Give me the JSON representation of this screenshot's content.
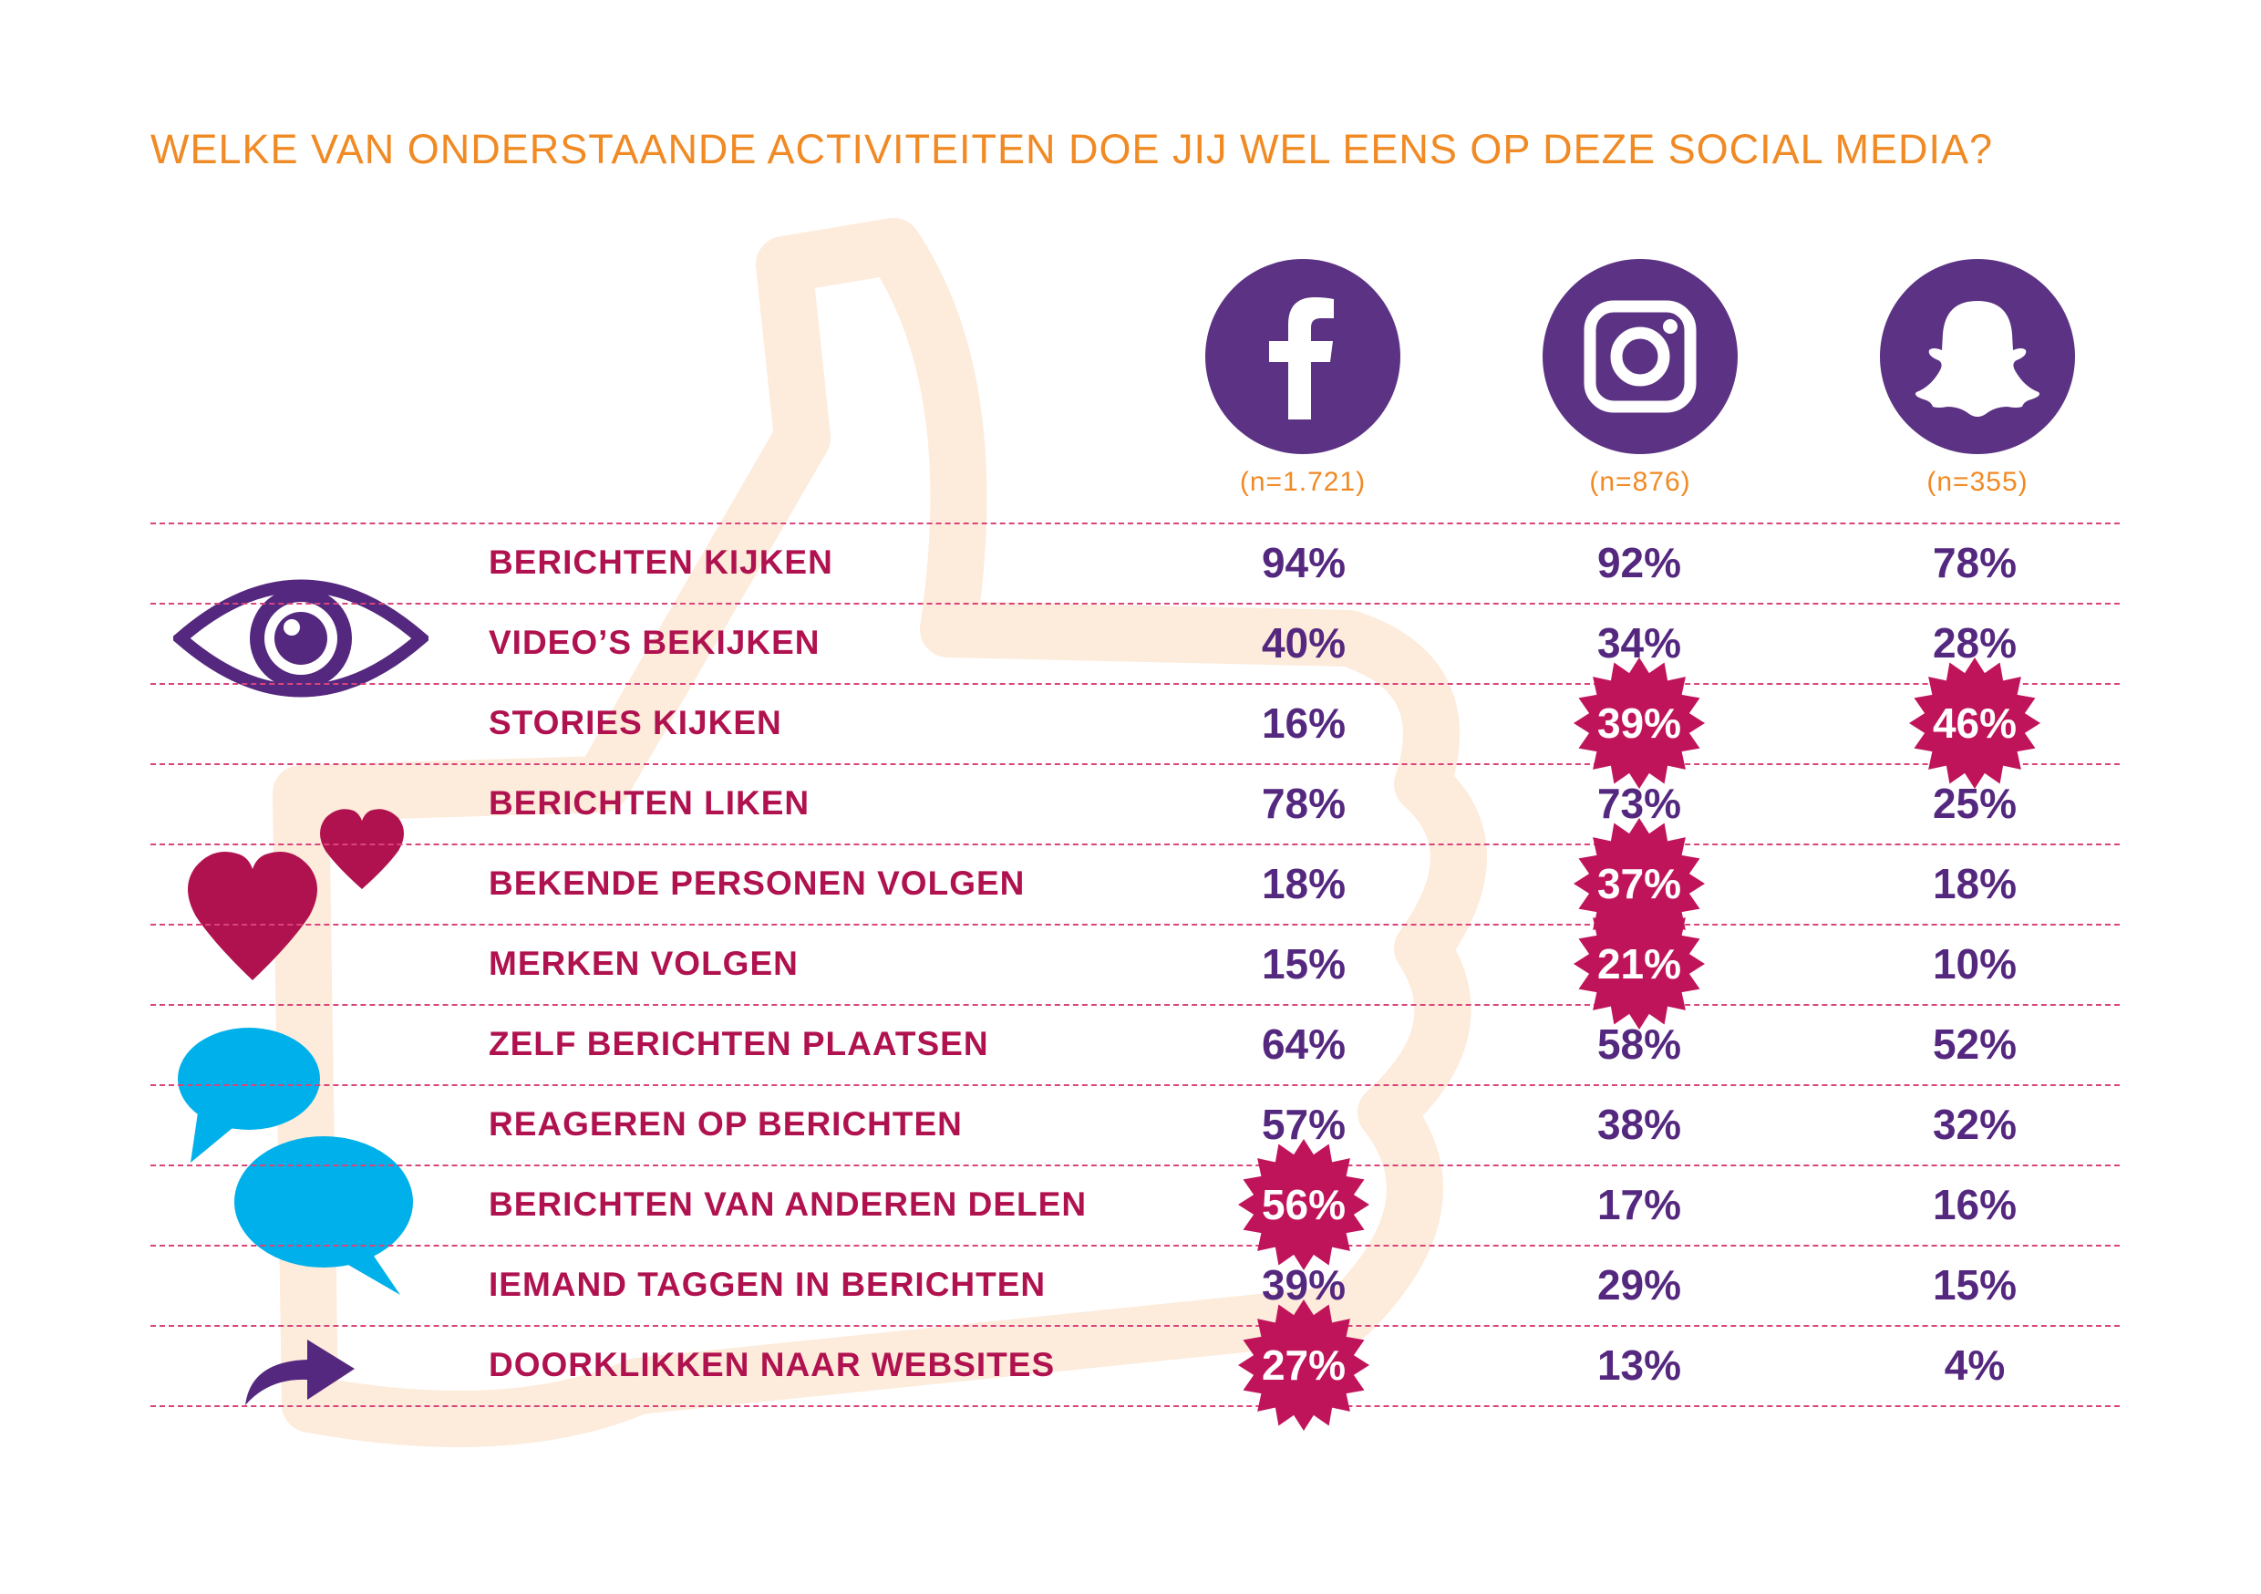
{
  "title": "WELKE VAN ONDERSTAANDE ACTIVITEITEN DOE JIJ WEL EENS OP DEZE SOCIAL MEDIA?",
  "colors": {
    "title": "#F08A24",
    "label": "#B0124F",
    "value": "#55287F",
    "highlight": "#C0145A",
    "logo": "#5C3384",
    "bubble": "#00B0EA",
    "heart": "#B0124F",
    "watermark": "#FDEBDB"
  },
  "platforms": [
    {
      "name": "Facebook",
      "icon": "facebook-icon",
      "n": "(n=1.721)"
    },
    {
      "name": "Instagram",
      "icon": "instagram-icon",
      "n": "(n=876)"
    },
    {
      "name": "Snapchat",
      "icon": "snapchat-icon",
      "n": "(n=355)"
    }
  ],
  "group_icons": [
    "eye-icon",
    "hearts-icon",
    "speech-bubbles-icon",
    "arrow-icon"
  ],
  "chart_data": {
    "type": "table",
    "title": "WELKE VAN ONDERSTAANDE ACTIVITEITEN DOE JIJ WEL EENS OP DEZE SOCIAL MEDIA?",
    "columns": [
      "(n=1.721)",
      "(n=876)",
      "(n=355)"
    ],
    "rows": [
      {
        "label": "BERICHTEN KIJKEN",
        "values": [
          "94%",
          "92%",
          "78%"
        ],
        "highlight": [
          false,
          false,
          false
        ]
      },
      {
        "label": "VIDEO’S BEKIJKEN",
        "values": [
          "40%",
          "34%",
          "28%"
        ],
        "highlight": [
          false,
          false,
          false
        ]
      },
      {
        "label": "STORIES KIJKEN",
        "values": [
          "16%",
          "39%",
          "46%"
        ],
        "highlight": [
          false,
          true,
          true
        ]
      },
      {
        "label": "BERICHTEN LIKEN",
        "values": [
          "78%",
          "73%",
          "25%"
        ],
        "highlight": [
          false,
          false,
          false
        ]
      },
      {
        "label": "BEKENDE PERSONEN VOLGEN",
        "values": [
          "18%",
          "37%",
          "18%"
        ],
        "highlight": [
          false,
          true,
          false
        ]
      },
      {
        "label": "MERKEN VOLGEN",
        "values": [
          "15%",
          "21%",
          "10%"
        ],
        "highlight": [
          false,
          true,
          false
        ]
      },
      {
        "label": "ZELF BERICHTEN PLAATSEN",
        "values": [
          "64%",
          "58%",
          "52%"
        ],
        "highlight": [
          false,
          false,
          false
        ]
      },
      {
        "label": "REAGEREN OP BERICHTEN",
        "values": [
          "57%",
          "38%",
          "32%"
        ],
        "highlight": [
          false,
          false,
          false
        ]
      },
      {
        "label": "BERICHTEN VAN ANDEREN DELEN",
        "values": [
          "56%",
          "17%",
          "16%"
        ],
        "highlight": [
          true,
          false,
          false
        ]
      },
      {
        "label": "IEMAND TAGGEN IN BERICHTEN",
        "values": [
          "39%",
          "29%",
          "15%"
        ],
        "highlight": [
          false,
          false,
          false
        ]
      },
      {
        "label": "DOORKLIKKEN NAAR WEBSITES",
        "values": [
          "27%",
          "13%",
          "4%"
        ],
        "highlight": [
          true,
          false,
          false
        ]
      }
    ],
    "groups": [
      [
        0,
        2
      ],
      [
        3,
        5
      ],
      [
        6,
        9
      ],
      [
        10,
        10
      ]
    ]
  }
}
